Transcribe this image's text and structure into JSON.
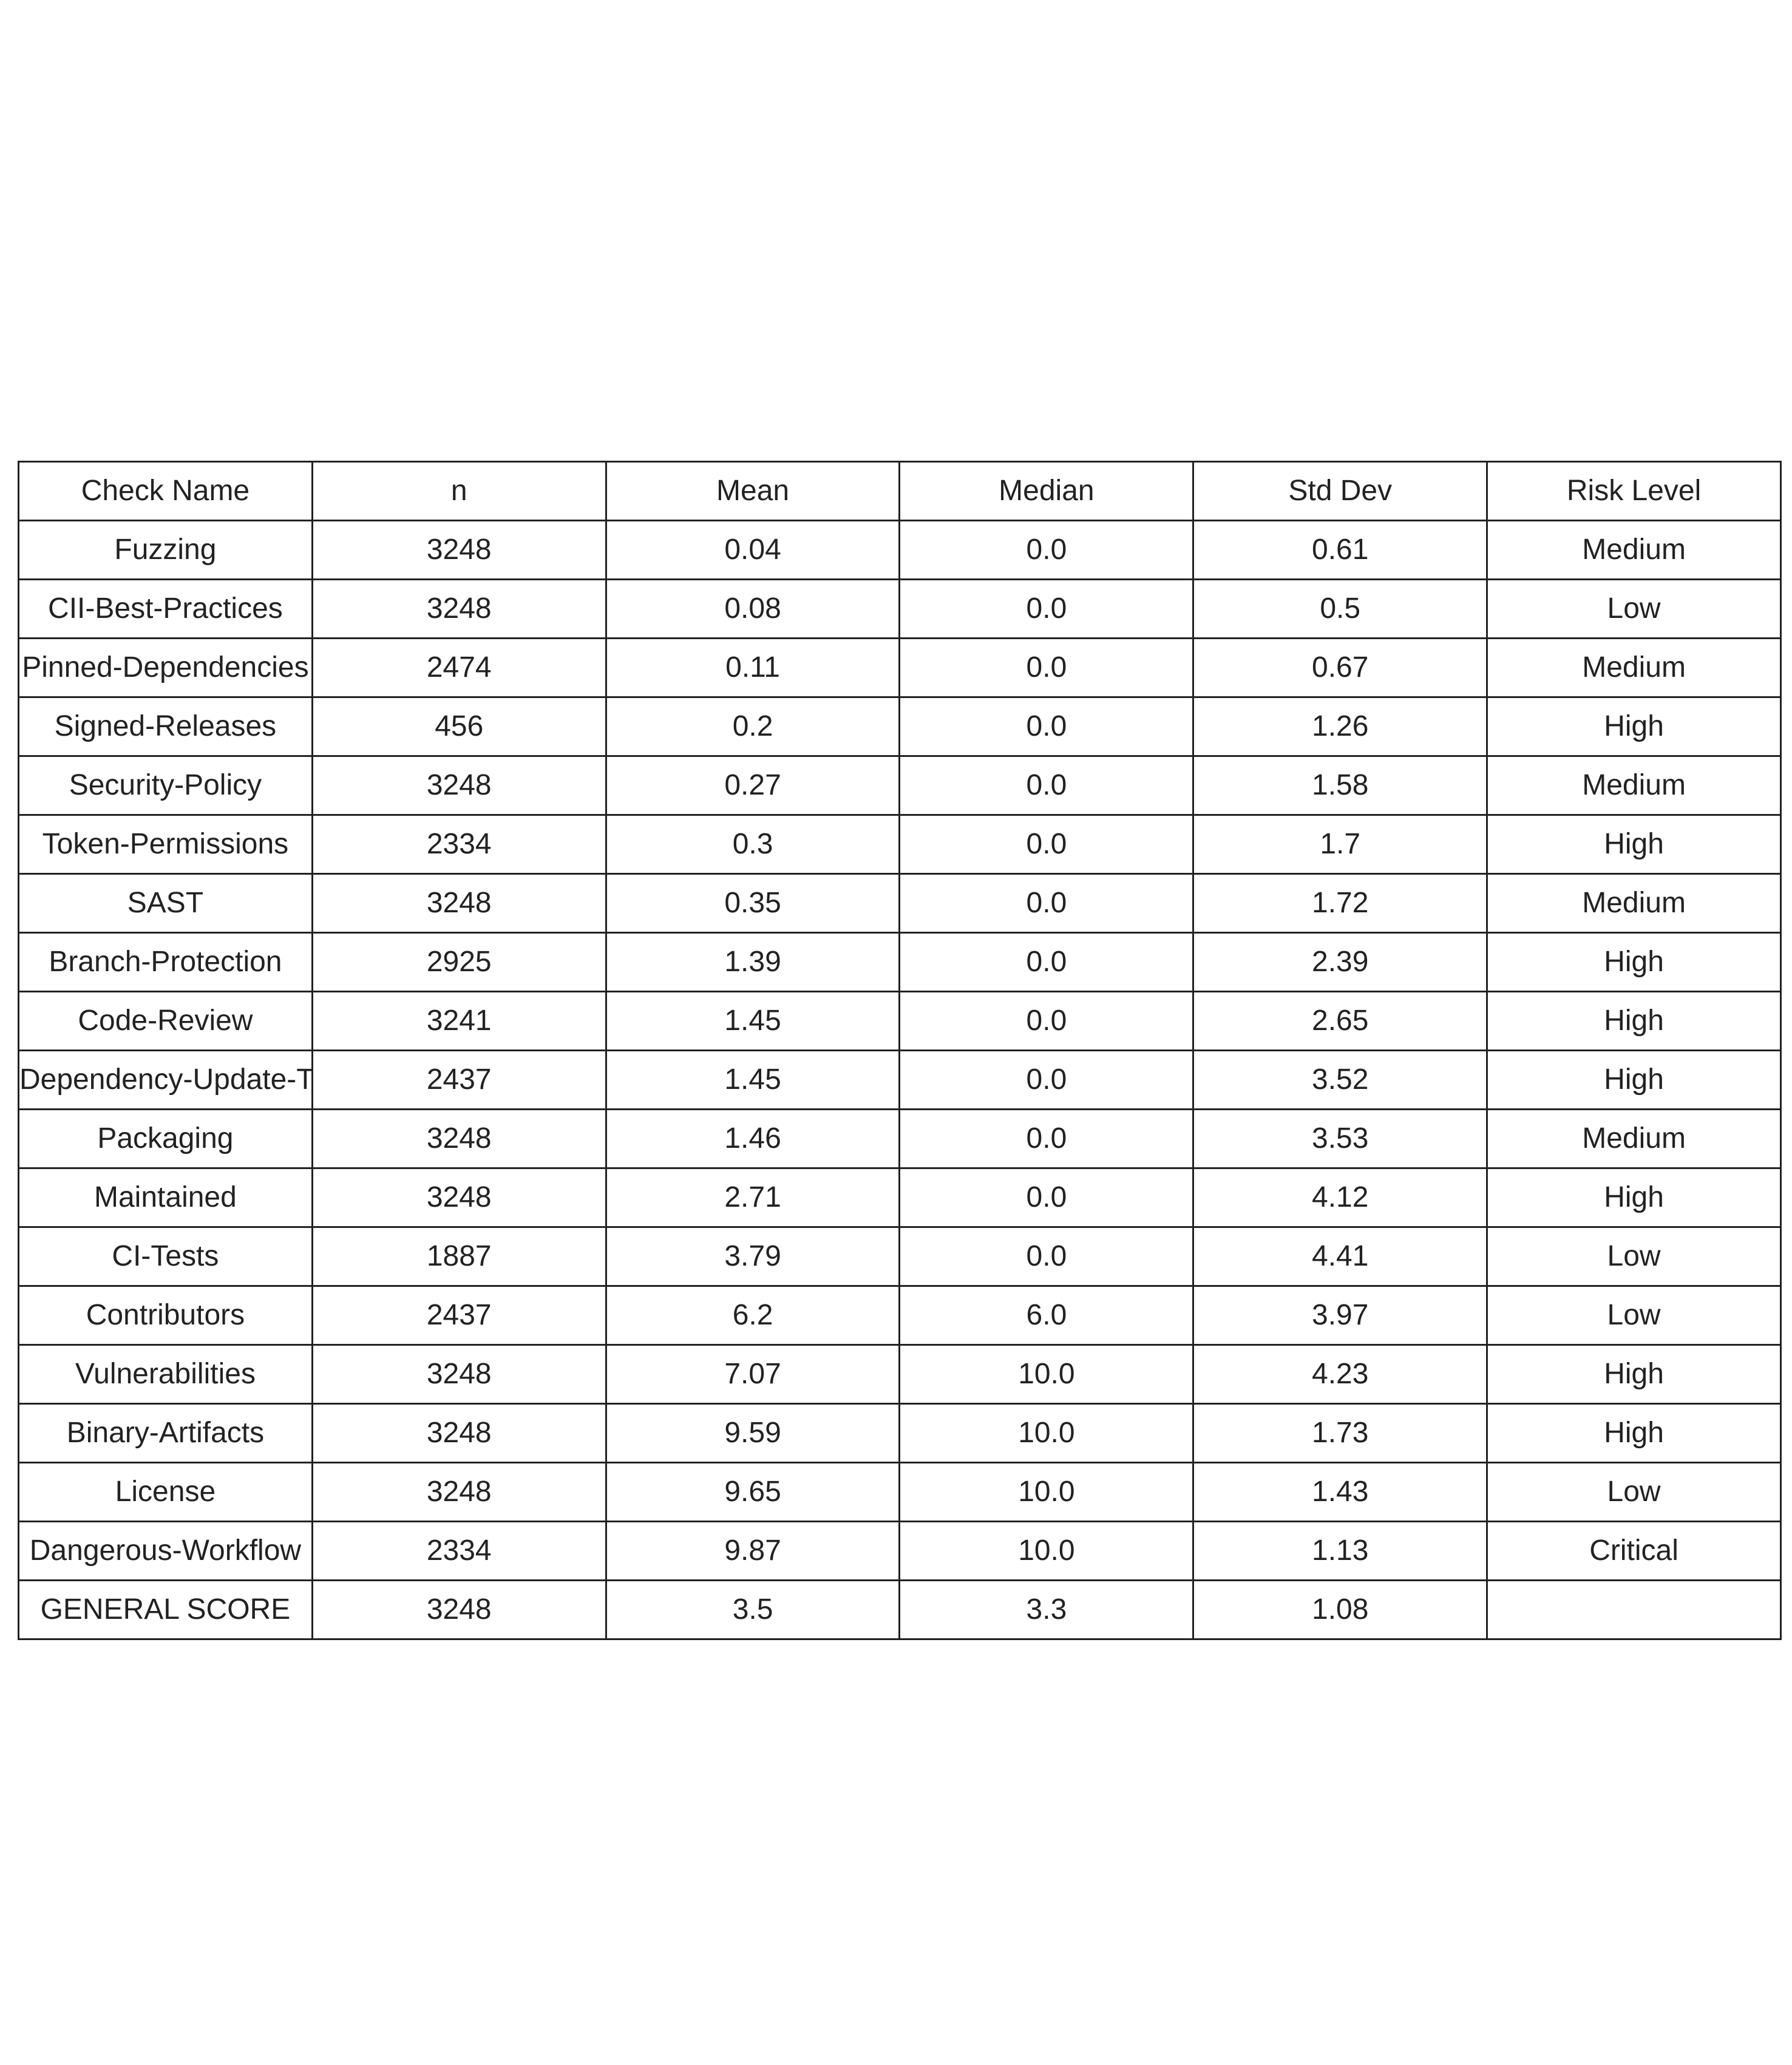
{
  "chart_data": {
    "type": "table",
    "columns": [
      "Check Name",
      "n",
      "Mean",
      "Median",
      "Std Dev",
      "Risk Level"
    ],
    "rows": [
      [
        "Fuzzing",
        "3248",
        "0.04",
        "0.0",
        "0.61",
        "Medium"
      ],
      [
        "CII-Best-Practices",
        "3248",
        "0.08",
        "0.0",
        "0.5",
        "Low"
      ],
      [
        "Pinned-Dependencies",
        "2474",
        "0.11",
        "0.0",
        "0.67",
        "Medium"
      ],
      [
        "Signed-Releases",
        "456",
        "0.2",
        "0.0",
        "1.26",
        "High"
      ],
      [
        "Security-Policy",
        "3248",
        "0.27",
        "0.0",
        "1.58",
        "Medium"
      ],
      [
        "Token-Permissions",
        "2334",
        "0.3",
        "0.0",
        "1.7",
        "High"
      ],
      [
        "SAST",
        "3248",
        "0.35",
        "0.0",
        "1.72",
        "Medium"
      ],
      [
        "Branch-Protection",
        "2925",
        "1.39",
        "0.0",
        "2.39",
        "High"
      ],
      [
        "Code-Review",
        "3241",
        "1.45",
        "0.0",
        "2.65",
        "High"
      ],
      [
        "Dependency-Update-To",
        "2437",
        "1.45",
        "0.0",
        "3.52",
        "High"
      ],
      [
        "Packaging",
        "3248",
        "1.46",
        "0.0",
        "3.53",
        "Medium"
      ],
      [
        "Maintained",
        "3248",
        "2.71",
        "0.0",
        "4.12",
        "High"
      ],
      [
        "CI-Tests",
        "1887",
        "3.79",
        "0.0",
        "4.41",
        "Low"
      ],
      [
        "Contributors",
        "2437",
        "6.2",
        "6.0",
        "3.97",
        "Low"
      ],
      [
        "Vulnerabilities",
        "3248",
        "7.07",
        "10.0",
        "4.23",
        "High"
      ],
      [
        "Binary-Artifacts",
        "3248",
        "9.59",
        "10.0",
        "1.73",
        "High"
      ],
      [
        "License",
        "3248",
        "9.65",
        "10.0",
        "1.43",
        "Low"
      ],
      [
        "Dangerous-Workflow",
        "2334",
        "9.87",
        "10.0",
        "1.13",
        "Critical"
      ],
      [
        "GENERAL SCORE",
        "3248",
        "3.5",
        "3.3",
        "1.08",
        ""
      ]
    ],
    "border_color": "#222222",
    "text_color": "#222222",
    "background": "#ffffff"
  }
}
